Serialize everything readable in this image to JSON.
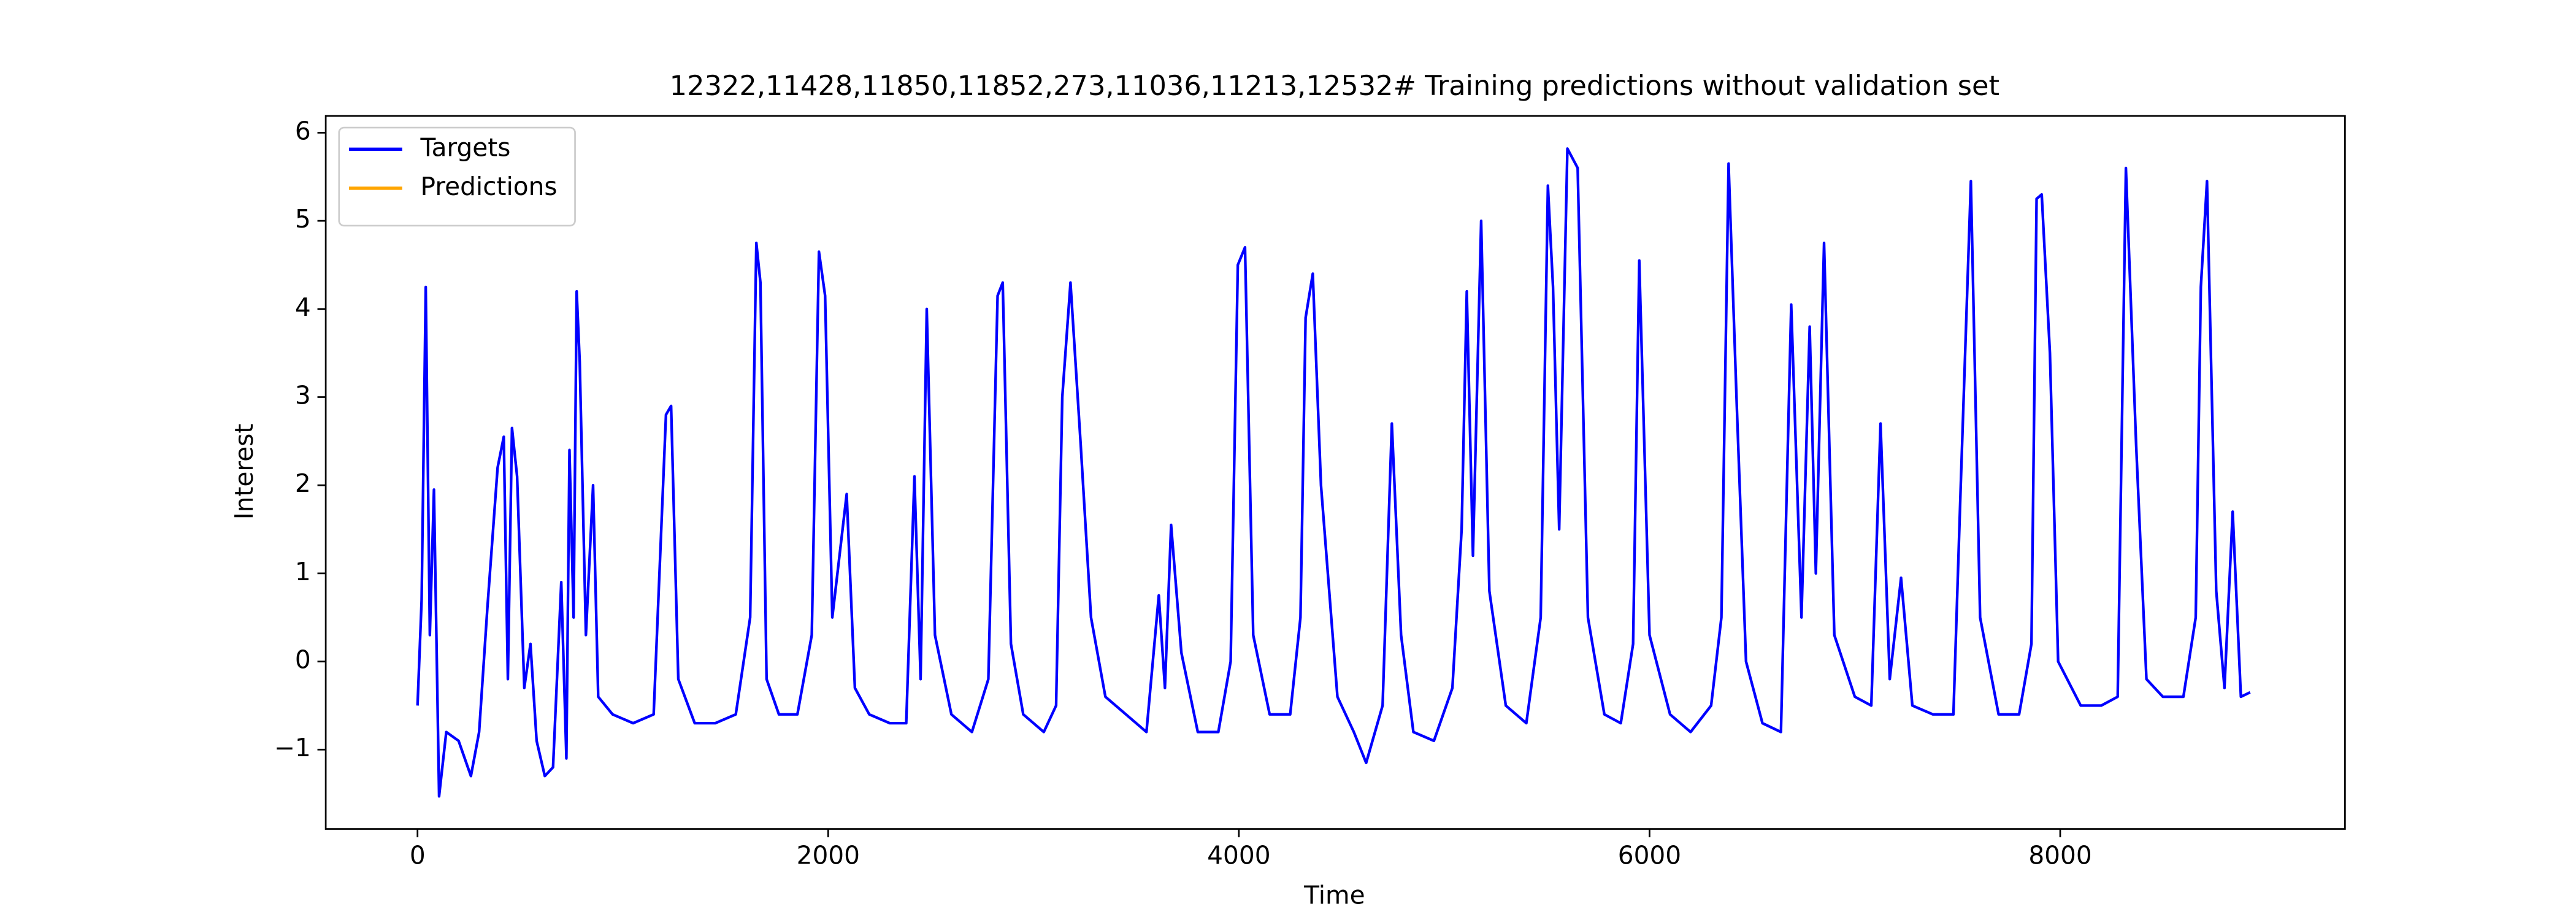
{
  "chart_data": {
    "type": "line",
    "title": "12322,11428,11850,11852,273,11036,11213,12532# Training predictions without validation set",
    "xlabel": "Time",
    "ylabel": "Interest",
    "xlim": [
      -447,
      9387
    ],
    "ylim": [
      -1.9,
      6.19
    ],
    "xticks": [
      0,
      2000,
      4000,
      6000,
      8000
    ],
    "yticks": [
      {
        "value": -1,
        "label": "−1"
      },
      0,
      1,
      2,
      3,
      4,
      5,
      6
    ],
    "legend": "upper left",
    "grid": false,
    "series": [
      {
        "name": "Targets",
        "color": "#0000ff",
        "x": [
          0,
          20,
          40,
          60,
          80,
          105,
          140,
          200,
          260,
          300,
          340,
          390,
          420,
          440,
          460,
          485,
          520,
          550,
          580,
          620,
          660,
          700,
          725,
          740,
          760,
          775,
          790,
          820,
          855,
          880,
          950,
          1050,
          1150,
          1210,
          1235,
          1270,
          1350,
          1450,
          1550,
          1620,
          1650,
          1670,
          1700,
          1760,
          1850,
          1920,
          1955,
          1985,
          2020,
          2090,
          2130,
          2200,
          2300,
          2380,
          2420,
          2450,
          2480,
          2520,
          2600,
          2700,
          2780,
          2825,
          2850,
          2890,
          2950,
          3050,
          3110,
          3140,
          3180,
          3230,
          3280,
          3350,
          3450,
          3550,
          3610,
          3640,
          3670,
          3720,
          3800,
          3900,
          3960,
          3995,
          4030,
          4070,
          4150,
          4250,
          4300,
          4325,
          4360,
          4400,
          4480,
          4560,
          4620,
          4700,
          4745,
          4790,
          4850,
          4950,
          5040,
          5085,
          5110,
          5140,
          5180,
          5220,
          5300,
          5400,
          5470,
          5505,
          5530,
          5560,
          5600,
          5650,
          5700,
          5780,
          5860,
          5920,
          5950,
          6000,
          6100,
          6200,
          6300,
          6350,
          6385,
          6425,
          6470,
          6550,
          6640,
          6690,
          6740,
          6780,
          6810,
          6850,
          6900,
          7000,
          7080,
          7125,
          7170,
          7225,
          7280,
          7380,
          7480,
          7515,
          7565,
          7610,
          7700,
          7800,
          7860,
          7885,
          7910,
          7950,
          7990,
          8100,
          8200,
          8280,
          8320,
          8370,
          8420,
          8500,
          8600,
          8660,
          8685,
          8715,
          8760,
          8800,
          8840,
          8880,
          8925
        ],
        "values": [
          -0.5,
          0.7,
          4.25,
          0.3,
          1.95,
          -1.53,
          -0.8,
          -0.9,
          -1.3,
          -0.8,
          0.6,
          2.2,
          2.55,
          -0.2,
          2.65,
          2.1,
          -0.3,
          0.2,
          -0.9,
          -1.3,
          -1.2,
          0.9,
          -1.1,
          2.4,
          0.5,
          4.2,
          3.4,
          0.3,
          2.0,
          -0.4,
          -0.6,
          -0.7,
          -0.6,
          2.8,
          2.9,
          -0.2,
          -0.7,
          -0.7,
          -0.6,
          0.5,
          4.75,
          4.3,
          -0.2,
          -0.6,
          -0.6,
          0.3,
          4.65,
          4.15,
          0.5,
          1.9,
          -0.3,
          -0.6,
          -0.7,
          -0.7,
          2.1,
          -0.2,
          4.0,
          0.3,
          -0.6,
          -0.8,
          -0.2,
          4.15,
          4.3,
          0.2,
          -0.6,
          -0.8,
          -0.5,
          3.0,
          4.3,
          2.45,
          0.5,
          -0.4,
          -0.6,
          -0.8,
          0.75,
          -0.3,
          1.55,
          0.1,
          -0.8,
          -0.8,
          0.0,
          4.5,
          4.7,
          0.3,
          -0.6,
          -0.6,
          0.5,
          3.9,
          4.4,
          2.0,
          -0.4,
          -0.8,
          -1.15,
          -0.5,
          2.7,
          0.3,
          -0.8,
          -0.9,
          -0.3,
          1.5,
          4.2,
          1.2,
          5.0,
          0.8,
          -0.5,
          -0.7,
          0.5,
          5.4,
          4.25,
          1.5,
          5.82,
          5.6,
          0.5,
          -0.6,
          -0.7,
          0.2,
          4.55,
          0.3,
          -0.6,
          -0.8,
          -0.5,
          0.5,
          5.65,
          2.9,
          0.0,
          -0.7,
          -0.8,
          4.05,
          0.5,
          3.8,
          1.0,
          4.75,
          0.3,
          -0.4,
          -0.5,
          2.7,
          -0.2,
          0.95,
          -0.5,
          -0.6,
          -0.6,
          1.95,
          5.45,
          0.5,
          -0.6,
          -0.6,
          0.2,
          5.25,
          5.3,
          3.5,
          0.0,
          -0.5,
          -0.5,
          -0.4,
          5.6,
          2.45,
          -0.2,
          -0.4,
          -0.4,
          0.5,
          4.25,
          5.45,
          0.8,
          -0.3,
          1.7,
          -0.4,
          -0.35
        ]
      },
      {
        "name": "Predictions",
        "color": "#ffa500",
        "x": [],
        "values": []
      }
    ]
  }
}
